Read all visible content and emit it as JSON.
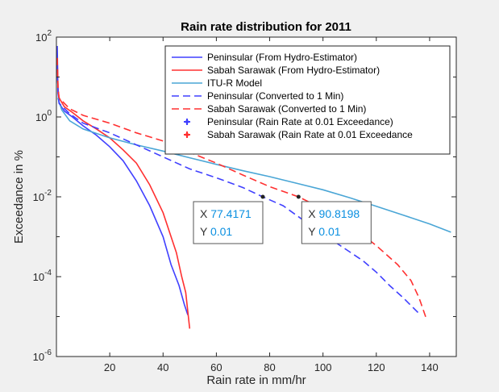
{
  "chart_data": {
    "type": "line",
    "title": "Rain rate distribution for 2011",
    "xlabel": "Rain rate in mm/hr",
    "ylabel": "Exceedance in %",
    "xlim": [
      0,
      150
    ],
    "ylim": [
      1e-06,
      100
    ],
    "yscale": "log",
    "grid": false,
    "legend_position": "top-right",
    "xticks": [
      {
        "value": 20,
        "label": "20"
      },
      {
        "value": 40,
        "label": "40"
      },
      {
        "value": 60,
        "label": "60"
      },
      {
        "value": 80,
        "label": "80"
      },
      {
        "value": 100,
        "label": "100"
      },
      {
        "value": 120,
        "label": "120"
      },
      {
        "value": 140,
        "label": "140"
      }
    ],
    "yticks": [
      {
        "value": 1e-06,
        "base": "10",
        "exp": "-6"
      },
      {
        "value": 0.0001,
        "base": "10",
        "exp": "-4"
      },
      {
        "value": 0.01,
        "base": "10",
        "exp": "-2"
      },
      {
        "value": 1,
        "base": "10",
        "exp": "0"
      },
      {
        "value": 100,
        "base": "10",
        "exp": "2"
      }
    ],
    "series": [
      {
        "name": "Peninsular (From Hydro-Estimator)",
        "color": "#4040ff",
        "dash": "solid",
        "points": [
          [
            0.3,
            60
          ],
          [
            0.6,
            4
          ],
          [
            1,
            2.2
          ],
          [
            3,
            1.4
          ],
          [
            6,
            1.0
          ],
          [
            10,
            0.6
          ],
          [
            15,
            0.35
          ],
          [
            20,
            0.18
          ],
          [
            25,
            0.08
          ],
          [
            30,
            0.025
          ],
          [
            35,
            0.006
          ],
          [
            40,
            0.001
          ],
          [
            43,
            0.0002
          ],
          [
            46,
            6e-05
          ],
          [
            48,
            2e-05
          ],
          [
            49.3,
            1.1e-05
          ]
        ]
      },
      {
        "name": "Sabah Sarawak (From Hydro-Estimator)",
        "color": "#ff3030",
        "dash": "solid",
        "points": [
          [
            0.3,
            30
          ],
          [
            0.6,
            5
          ],
          [
            1,
            3
          ],
          [
            3,
            1.8
          ],
          [
            6,
            1.3
          ],
          [
            10,
            0.8
          ],
          [
            15,
            0.5
          ],
          [
            20,
            0.3
          ],
          [
            25,
            0.15
          ],
          [
            30,
            0.07
          ],
          [
            35,
            0.02
          ],
          [
            40,
            0.004
          ],
          [
            43,
            0.001
          ],
          [
            45,
            0.0004
          ],
          [
            47,
            0.0001
          ],
          [
            48.5,
            4e-05
          ],
          [
            50,
            5e-06
          ]
        ]
      },
      {
        "name": "ITU-R Model",
        "color": "#4aa6d6",
        "dash": "solid",
        "points": [
          [
            0.5,
            3
          ],
          [
            2,
            1.5
          ],
          [
            5,
            0.8
          ],
          [
            10,
            0.5
          ],
          [
            20,
            0.3
          ],
          [
            30,
            0.2
          ],
          [
            40,
            0.14
          ],
          [
            50,
            0.095
          ],
          [
            60,
            0.065
          ],
          [
            70,
            0.045
          ],
          [
            80,
            0.032
          ],
          [
            90,
            0.022
          ],
          [
            100,
            0.015
          ],
          [
            110,
            0.0095
          ],
          [
            120,
            0.0058
          ],
          [
            130,
            0.0035
          ],
          [
            140,
            0.0021
          ],
          [
            148,
            0.0013
          ]
        ]
      },
      {
        "name": "Peninsular (Converted to 1 Min)",
        "color": "#4040ff",
        "dash": "dashed",
        "points": [
          [
            0.3,
            20
          ],
          [
            0.6,
            4
          ],
          [
            1,
            2.2
          ],
          [
            5,
            1.2
          ],
          [
            10,
            0.7
          ],
          [
            20,
            0.4
          ],
          [
            30,
            0.2
          ],
          [
            40,
            0.1
          ],
          [
            50,
            0.05
          ],
          [
            60,
            0.03
          ],
          [
            70,
            0.017
          ],
          [
            77.4,
            0.01
          ],
          [
            85,
            0.006
          ],
          [
            95,
            0.002
          ],
          [
            105,
            0.0007
          ],
          [
            115,
            0.00025
          ],
          [
            120,
            0.00013
          ],
          [
            125,
            6e-05
          ],
          [
            130,
            3e-05
          ],
          [
            136,
            1.2e-05
          ]
        ]
      },
      {
        "name": "Sabah Sarawak (Converted to 1 Min)",
        "color": "#ff3030",
        "dash": "dashed",
        "points": [
          [
            0.3,
            30
          ],
          [
            0.6,
            5
          ],
          [
            1,
            3
          ],
          [
            5,
            1.6
          ],
          [
            10,
            1.1
          ],
          [
            20,
            0.7
          ],
          [
            30,
            0.4
          ],
          [
            40,
            0.25
          ],
          [
            50,
            0.13
          ],
          [
            60,
            0.07
          ],
          [
            70,
            0.035
          ],
          [
            80,
            0.018
          ],
          [
            90.8,
            0.01
          ],
          [
            100,
            0.005
          ],
          [
            110,
            0.002
          ],
          [
            120,
            0.0006
          ],
          [
            128,
            0.0002
          ],
          [
            133,
            8e-05
          ],
          [
            136,
            3e-05
          ],
          [
            139,
            8e-06
          ]
        ]
      }
    ],
    "markers": [
      {
        "name": "Peninsular (Rain Rate at 0.01 Exceedance)",
        "color": "#4040ff",
        "x": 77.4171,
        "y": 0.01
      },
      {
        "name": "Sabah Sarawak (Rain Rate at 0.01 Exceedance",
        "color": "#ff3030",
        "x": 90.8198,
        "y": 0.01
      }
    ],
    "datatips": [
      {
        "x_label": "X",
        "x_value": "77.4171",
        "y_label": "Y",
        "y_value": "0.01",
        "x": 77.4171,
        "y": 0.01
      },
      {
        "x_label": "X",
        "x_value": "90.8198",
        "y_label": "Y",
        "y_value": "0.01",
        "x": 90.8198,
        "y": 0.01
      }
    ]
  }
}
